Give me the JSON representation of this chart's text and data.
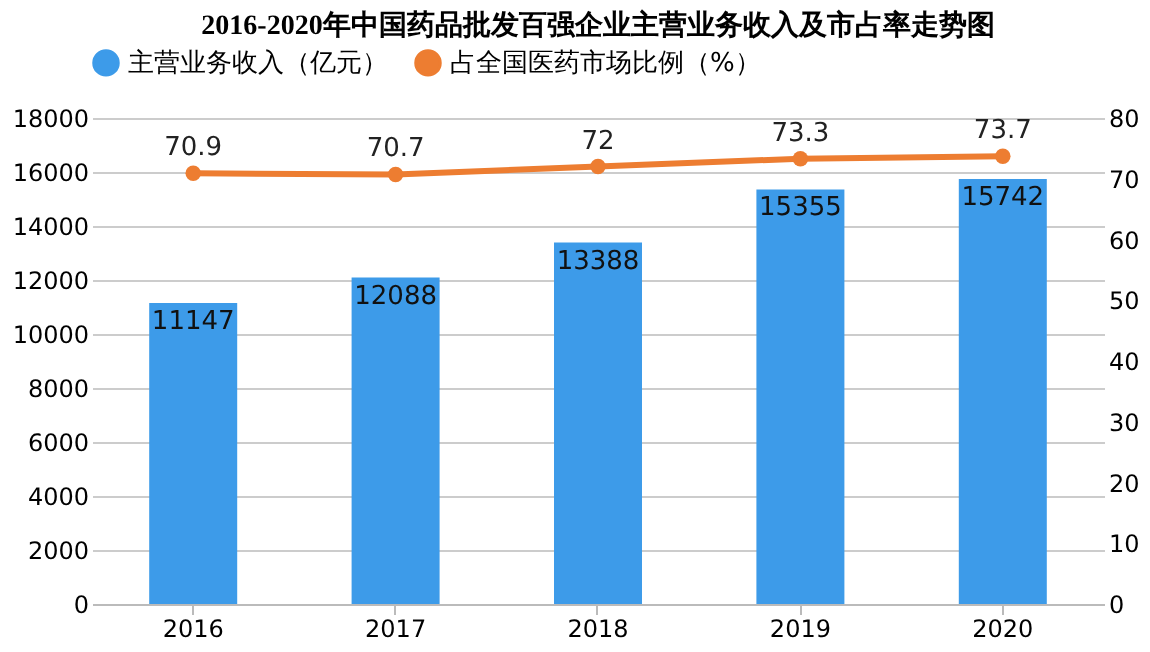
{
  "chart_data": {
    "type": "bar",
    "title": "2016-2020年中国药品批发百强企业主营业务收入及市占率走势图",
    "categories": [
      "2016",
      "2017",
      "2018",
      "2019",
      "2020"
    ],
    "series": [
      {
        "name": "主营业务收入（亿元）",
        "color": "#3d9be9",
        "values": [
          11147,
          12088,
          13388,
          15355,
          15742
        ]
      },
      {
        "name": "占全国医药市场比例（%）",
        "type": "line",
        "axis": "y2",
        "color": "#ed7d31",
        "values": [
          70.9,
          70.7,
          72,
          73.3,
          73.7
        ]
      }
    ],
    "ylim": [
      0,
      18000
    ],
    "yticks": [
      0,
      2000,
      4000,
      6000,
      8000,
      10000,
      12000,
      14000,
      16000,
      18000
    ],
    "y2lim": [
      0,
      80
    ],
    "y2ticks": [
      0,
      10,
      20,
      30,
      40,
      50,
      60,
      70,
      80
    ],
    "grid": "y",
    "legend": "top",
    "marker": "circle",
    "data_labels": true
  }
}
